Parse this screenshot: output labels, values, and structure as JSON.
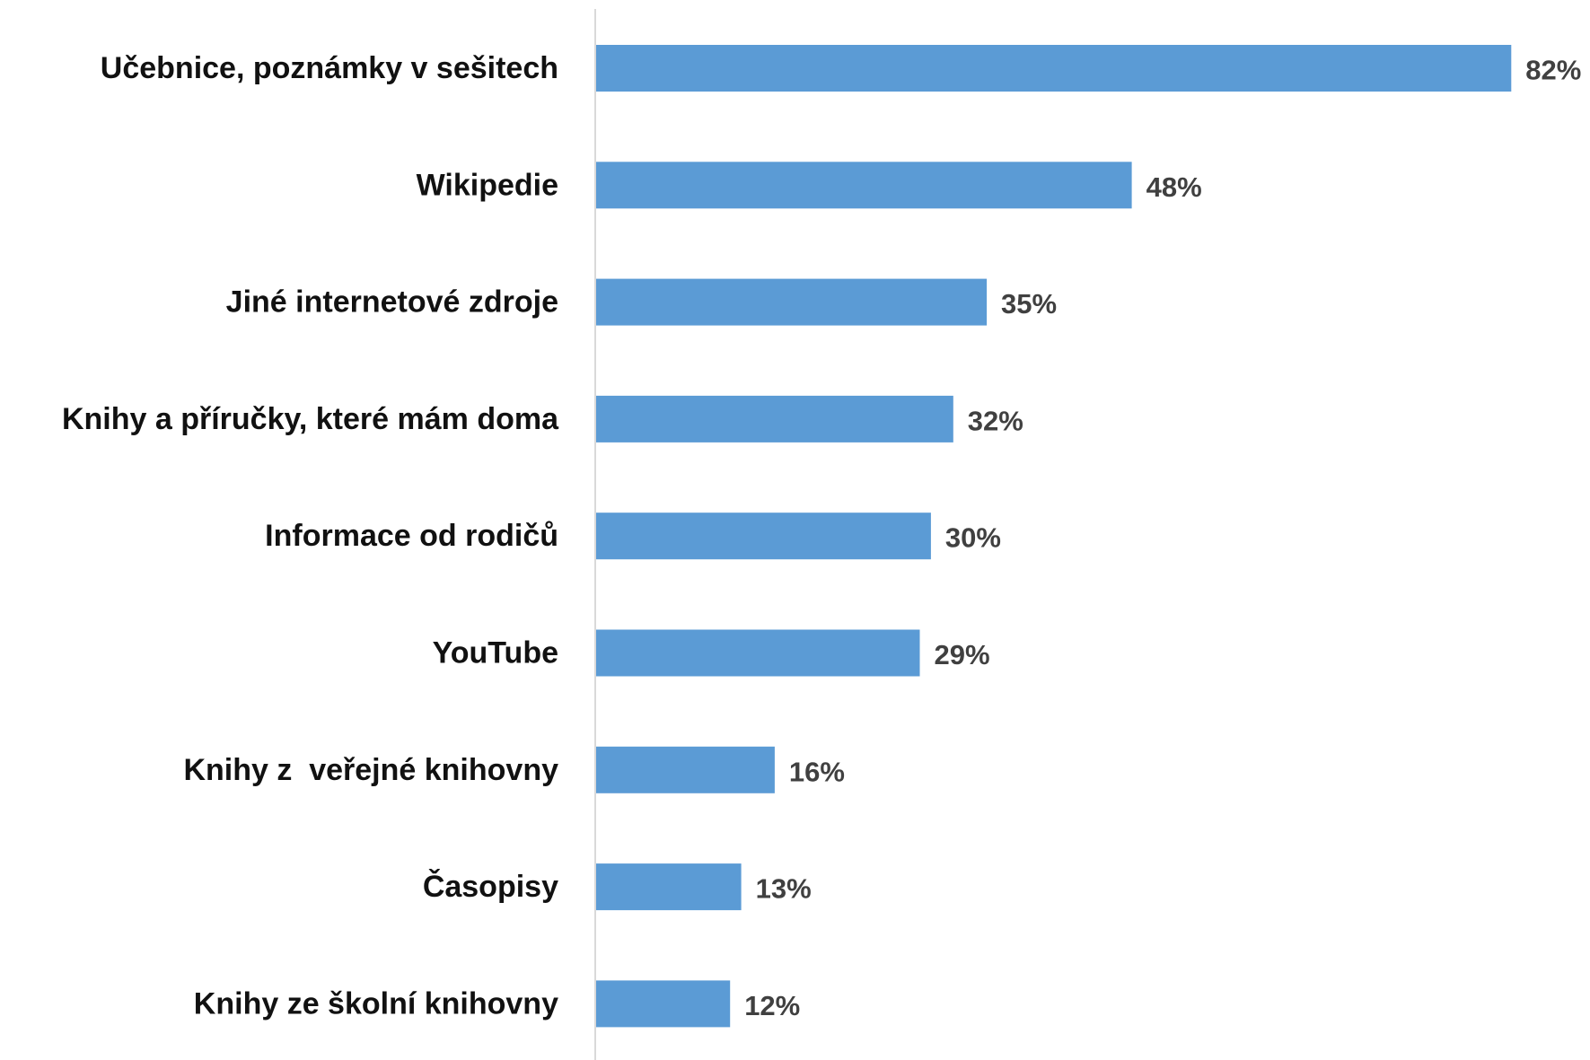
{
  "chart_data": {
    "type": "bar",
    "orientation": "horizontal",
    "title": "",
    "xlabel": "",
    "ylabel": "",
    "categories": [
      "Učebnice, poznámky v sešitech",
      "Wikipedie",
      "Jiné internetové zdroje",
      "Knihy a příručky, které mám doma",
      "Informace od rodičů",
      "YouTube",
      "Knihy z  veřejné knihovny",
      "Časopisy",
      "Knihy ze školní knihovny"
    ],
    "values": [
      82,
      48,
      35,
      32,
      30,
      29,
      16,
      13,
      12
    ],
    "value_labels": [
      "82%",
      "48%",
      "35%",
      "32%",
      "30%",
      "29%",
      "16%",
      "13%",
      "12%"
    ],
    "unit": "%",
    "xlim": [
      0,
      100
    ],
    "grid": false,
    "legend": "none",
    "bar_color": "#5b9bd5",
    "axis_color": "#d9d9d9"
  }
}
